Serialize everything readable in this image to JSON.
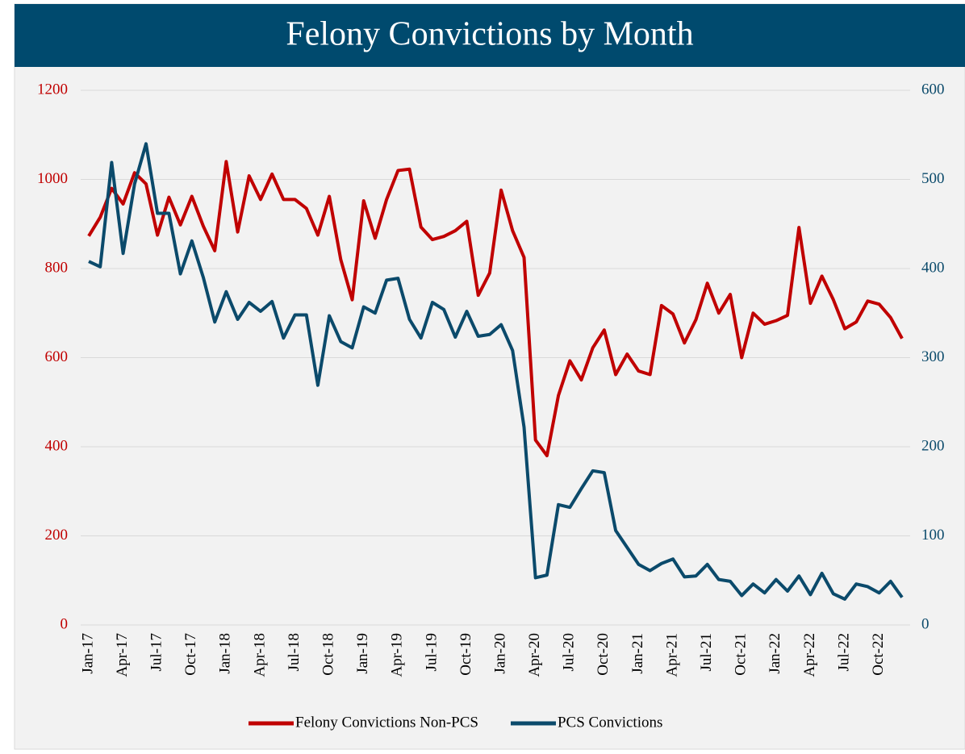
{
  "chart_data": {
    "type": "line",
    "title": "Felony Convictions by Month",
    "categories": [
      "Jan-17",
      null,
      null,
      "Apr-17",
      null,
      null,
      "Jul-17",
      null,
      null,
      "Oct-17",
      null,
      null,
      "Jan-18",
      null,
      null,
      "Apr-18",
      null,
      null,
      "Jul-18",
      null,
      null,
      "Oct-18",
      null,
      null,
      "Jan-19",
      null,
      null,
      "Apr-19",
      null,
      null,
      "Jul-19",
      null,
      null,
      "Oct-19",
      null,
      null,
      "Jan-20",
      null,
      null,
      "Apr-20",
      null,
      null,
      "Jul-20",
      null,
      null,
      "Oct-20",
      null,
      null,
      "Jan-21",
      null,
      null,
      "Apr-21",
      null,
      null,
      "Jul-21",
      null,
      null,
      "Oct-21",
      null,
      null,
      "Jan-22",
      null,
      null,
      "Apr-22",
      null,
      null,
      "Jul-22",
      null,
      null,
      "Oct-22",
      null,
      null
    ],
    "series": [
      {
        "name": "Felony Convictions Non-PCS",
        "color": "#c00000",
        "values": [
          873,
          915,
          980,
          945,
          1015,
          990,
          875,
          960,
          898,
          962,
          895,
          840,
          1040,
          882,
          1008,
          955,
          1012,
          955,
          955,
          935,
          875,
          962,
          820,
          730,
          952,
          868,
          955,
          1020,
          1023,
          893,
          865,
          872,
          885,
          906,
          740,
          790,
          976,
          885,
          825,
          415,
          380,
          515,
          593,
          550,
          622,
          662,
          562,
          608,
          570,
          562,
          717,
          698,
          633,
          685,
          767,
          700,
          742,
          600,
          700,
          675,
          683,
          695,
          892,
          722,
          783,
          730,
          665,
          680,
          727,
          720,
          690,
          643
        ]
      },
      {
        "name": "PCS Convictions",
        "color": "#0b4a6b",
        "axis": "y2",
        "values": [
          408,
          402,
          519,
          417,
          495,
          540,
          462,
          462,
          394,
          431,
          390,
          340,
          374,
          343,
          362,
          352,
          363,
          322,
          348,
          348,
          269,
          347,
          318,
          311,
          357,
          350,
          387,
          389,
          343,
          322,
          362,
          354,
          323,
          352,
          324,
          326,
          337,
          308,
          222,
          53,
          56,
          135,
          132,
          153,
          173,
          171,
          106,
          87,
          68,
          61,
          69,
          74,
          54,
          55,
          68,
          51,
          49,
          33,
          46,
          36,
          51,
          38,
          55,
          34,
          58,
          35,
          29,
          46,
          43,
          36,
          49,
          31
        ]
      }
    ],
    "ylim": [
      0,
      1200
    ],
    "yticks": [
      0,
      200,
      400,
      600,
      800,
      1000,
      1200
    ],
    "y2lim": [
      0,
      600
    ],
    "y2ticks": [
      0,
      100,
      200,
      300,
      400,
      500,
      600
    ],
    "grid": true,
    "legend": "bottom"
  }
}
